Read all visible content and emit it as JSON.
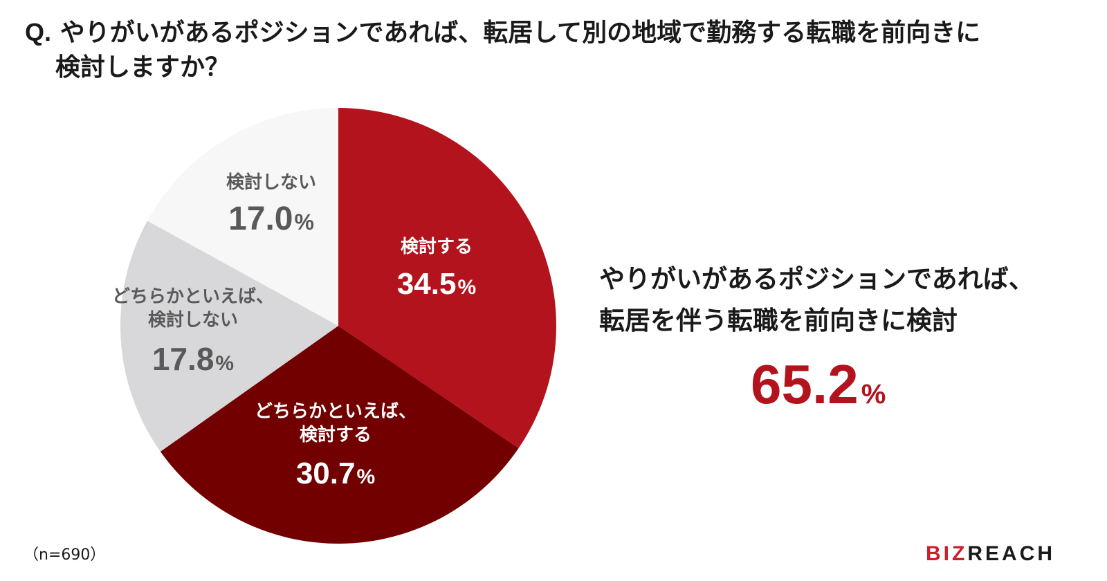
{
  "question": {
    "prefix": "Q.",
    "line1": "やりがいがあるポジションであれば、転居して別の地域で勤務する転職を前向きに",
    "line2": "検討しますか？"
  },
  "chart_data": {
    "type": "pie",
    "start_angle_deg": 0,
    "direction": "clockwise",
    "slices": [
      {
        "label_lines": [
          "検討する"
        ],
        "value": 34.5,
        "color": "#b3131c",
        "text_color": "#ffffff"
      },
      {
        "label_lines": [
          "どちらかといえば、",
          "検討する"
        ],
        "value": 30.7,
        "color": "#720000",
        "text_color": "#ffffff"
      },
      {
        "label_lines": [
          "どちらかといえば、",
          "検討しない"
        ],
        "value": 17.8,
        "color": "#d8d8da",
        "text_color": "#595959"
      },
      {
        "label_lines": [
          "検討しない"
        ],
        "value": 17.0,
        "color": "#f7f7f7",
        "text_color": "#595959"
      }
    ],
    "unit": "%"
  },
  "summary": {
    "line1": "やりがいがあるポジションであれば、",
    "line2": "転居を伴う転職を前向きに検討",
    "value": "65.2",
    "unit": "%"
  },
  "sample": "（n=690）",
  "logo": {
    "part1": "BIZ",
    "part2": "REACH"
  }
}
